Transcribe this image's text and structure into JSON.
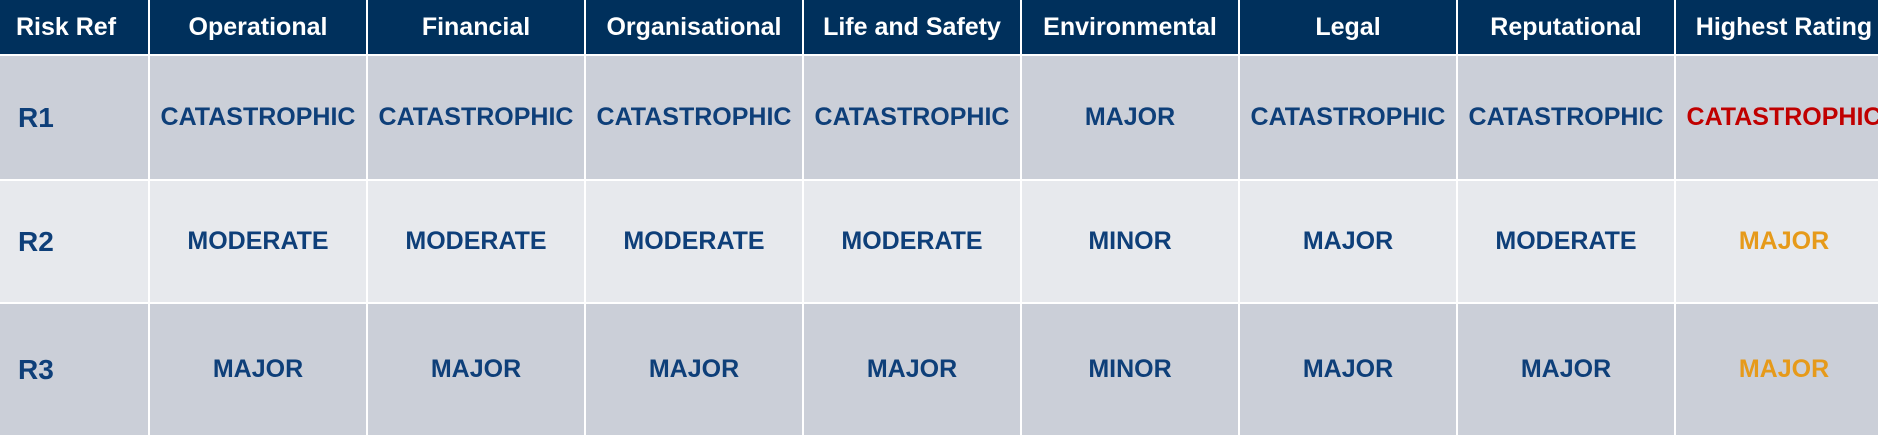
{
  "headers": [
    "Risk Ref",
    "Operational",
    "Financial",
    "Organisational",
    "Life and Safety",
    "Environmental",
    "Legal",
    "Reputational",
    "Highest Rating"
  ],
  "rows": [
    {
      "ref": "R1",
      "operational": "CATASTROPHIC",
      "financial": "CATASTROPHIC",
      "organisational": "CATASTROPHIC",
      "life_and_safety": "CATASTROPHIC",
      "environmental": "MAJOR",
      "legal": "CATASTROPHIC",
      "reputational": "CATASTROPHIC",
      "highest_rating": "CATASTROPHIC"
    },
    {
      "ref": "R2",
      "operational": "MODERATE",
      "financial": "MODERATE",
      "organisational": "MODERATE",
      "life_and_safety": "MODERATE",
      "environmental": "MINOR",
      "legal": "MAJOR",
      "reputational": "MODERATE",
      "highest_rating": "MAJOR"
    },
    {
      "ref": "R3",
      "operational": "MAJOR",
      "financial": "MAJOR",
      "organisational": "MAJOR",
      "life_and_safety": "MAJOR",
      "environmental": "MINOR",
      "legal": "MAJOR",
      "reputational": "MAJOR",
      "highest_rating": "MAJOR"
    }
  ],
  "colors": {
    "header_bg": "#00305c",
    "header_text": "#ffffff",
    "row_odd_bg": "#cbcfd8",
    "row_even_bg": "#e7e9ed",
    "cell_text": "#0e3f79",
    "catastrophic_highest": "#c00000",
    "major_highest": "#e69a1a"
  }
}
